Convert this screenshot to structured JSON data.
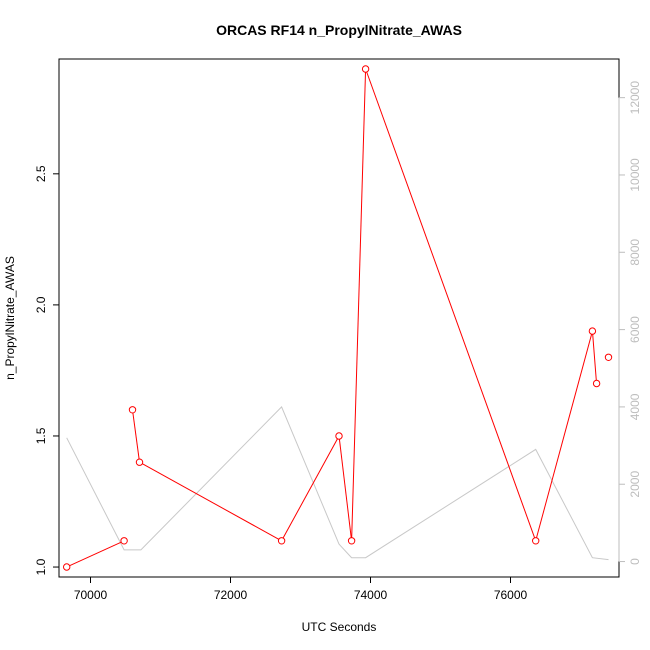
{
  "chart_data": {
    "type": "line",
    "title": "ORCAS RF14 n_PropylNitrate_AWAS",
    "xlabel": "UTC Seconds",
    "ylabel": "n_PropylNitrate_AWAS",
    "xlim": [
      69550,
      77550
    ],
    "ylim": [
      0.962,
      2.938
    ],
    "y2lim": [
      -400,
      13000
    ],
    "x_ticks": [
      70000,
      72000,
      74000,
      76000
    ],
    "x_tick_labels": [
      "70000",
      "72000",
      "74000",
      "76000"
    ],
    "y_ticks": [
      1.0,
      1.5,
      2.0,
      2.5
    ],
    "y_tick_labels": [
      "1.0",
      "1.5",
      "2.0",
      "2.5"
    ],
    "y2_ticks": [
      0,
      2000,
      4000,
      6000,
      8000,
      10000,
      12000
    ],
    "y2_tick_labels": [
      "0",
      "2000",
      "4000",
      "6000",
      "8000",
      "10000",
      "12000"
    ],
    "grid": false,
    "series": [
      {
        "role": "primary",
        "color": "#ff0000",
        "marker": "open-circle",
        "x": [
          69660,
          70480,
          70600,
          70700,
          72730,
          73550,
          73730,
          73930,
          76360,
          77170,
          77230,
          77400
        ],
        "y": [
          1.0,
          1.1,
          1.6,
          1.4,
          1.1,
          1.5,
          1.1,
          2.9,
          1.1,
          1.9,
          1.7,
          1.8
        ],
        "breaks_after": [
          1,
          10
        ]
      },
      {
        "role": "secondary",
        "color": "#c8c8c8",
        "x": [
          69660,
          70480,
          70720,
          72730,
          73550,
          73730,
          73930,
          76360,
          77170,
          77400
        ],
        "y": [
          3200,
          300,
          300,
          4000,
          450,
          100,
          100,
          2900,
          100,
          50
        ]
      }
    ]
  }
}
